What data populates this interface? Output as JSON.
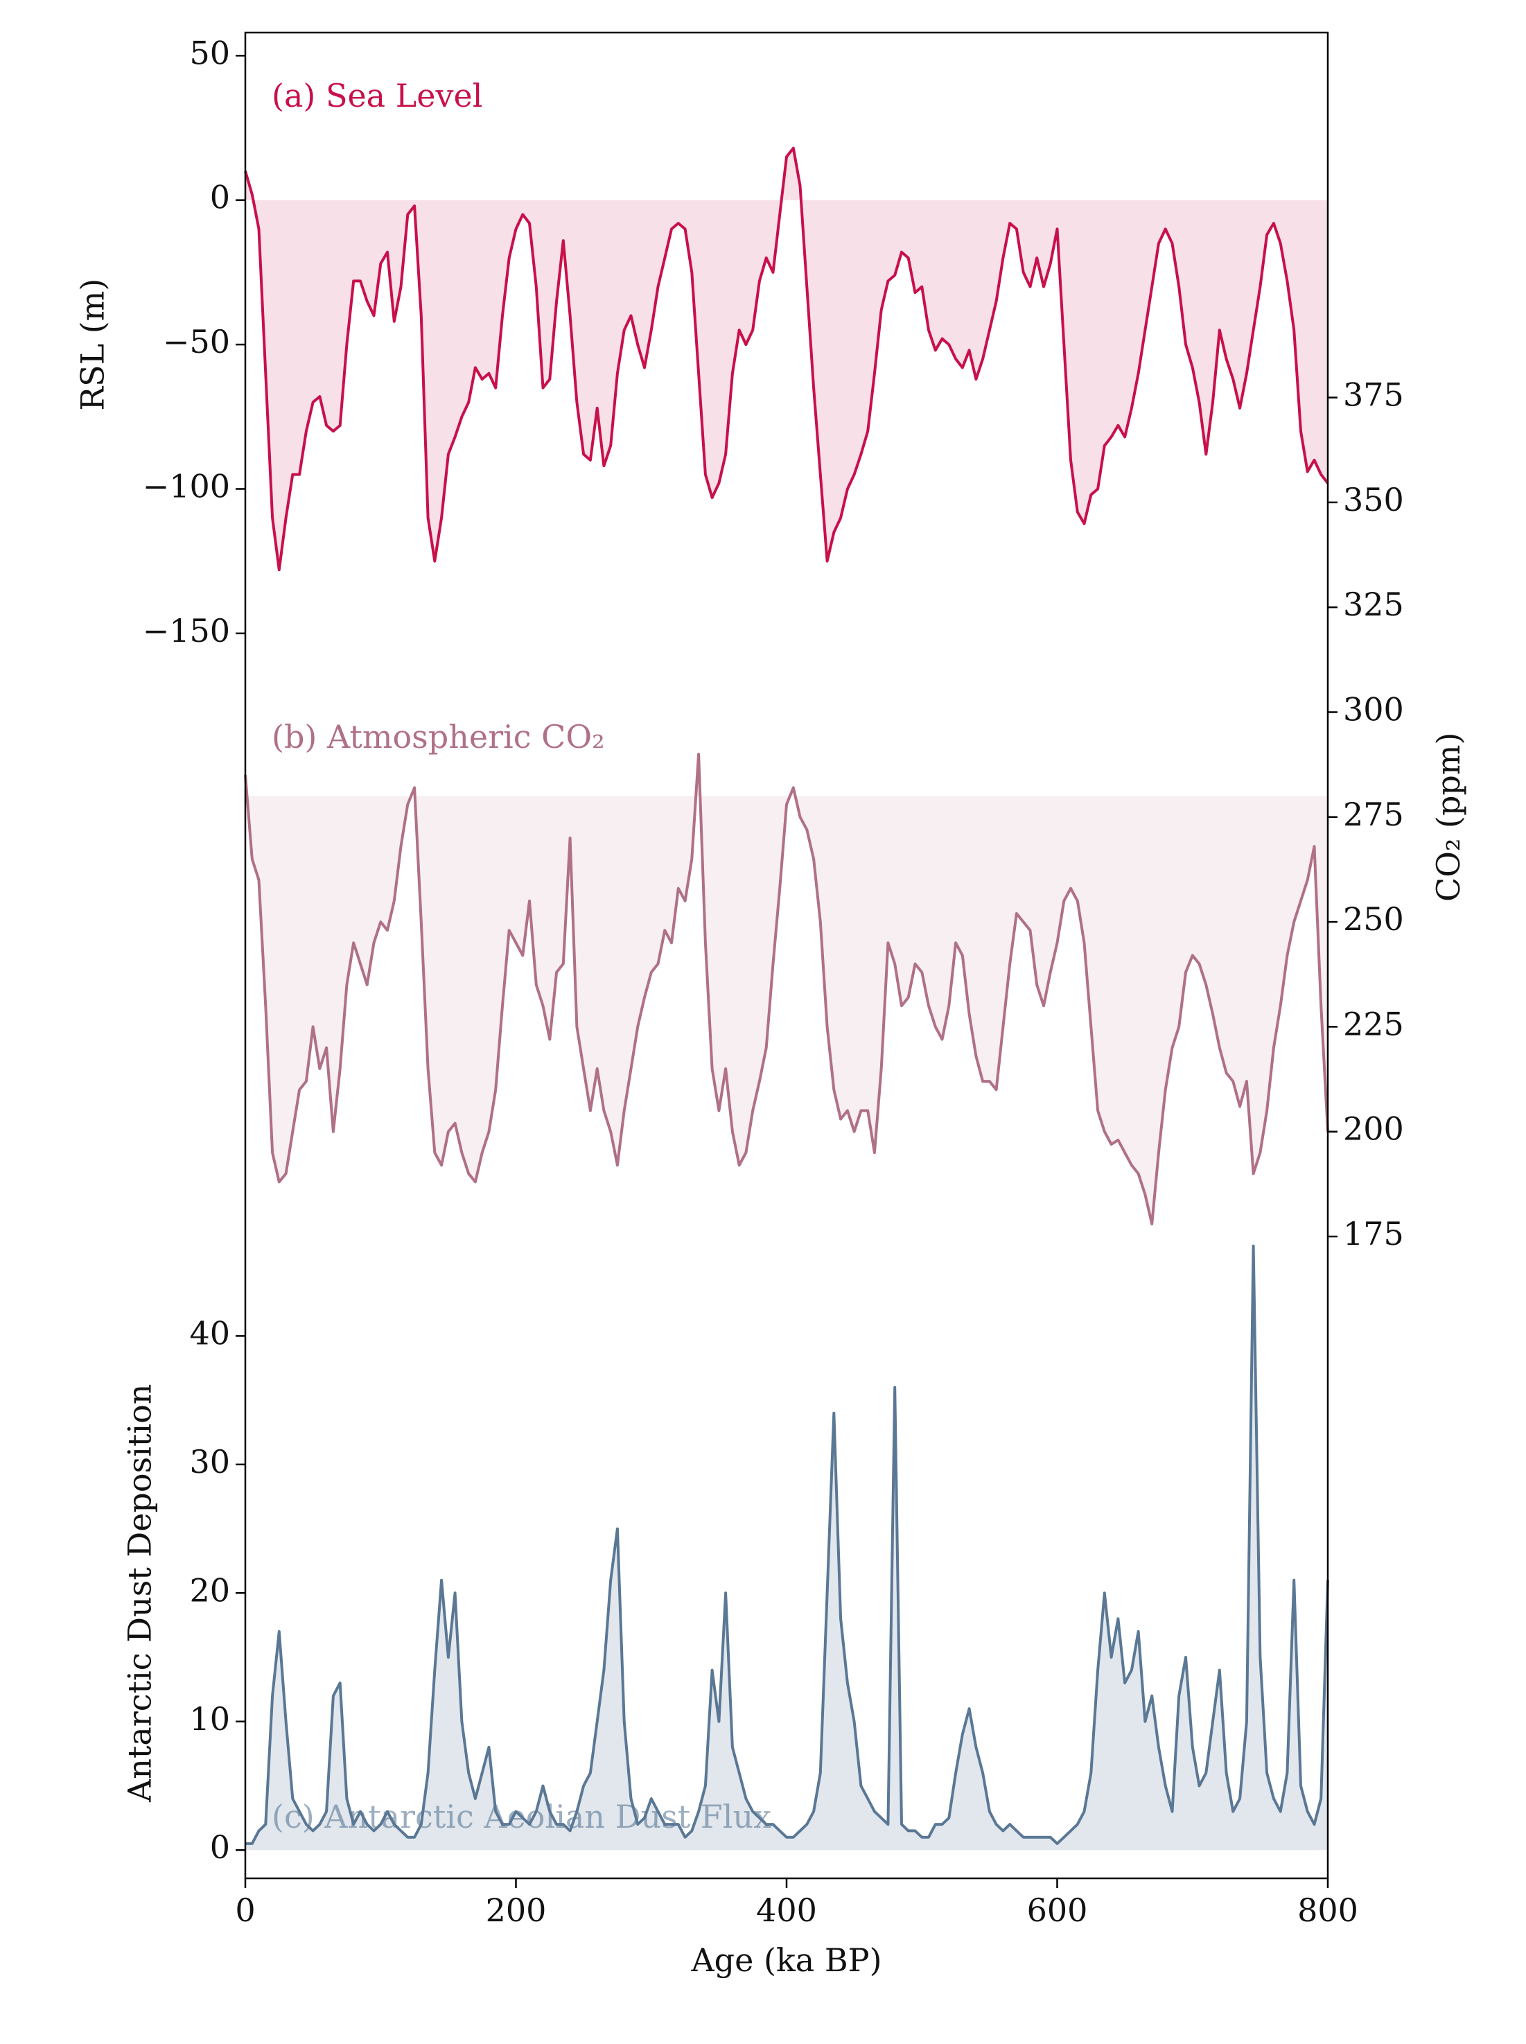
{
  "chart_data": [
    {
      "type": "line",
      "annotation": "(a) Sea Level",
      "y_label": "RSL (m)",
      "y_axis_side": "left",
      "color": "#c8104a",
      "fill_color": "#f7dbe5",
      "fill_to": 0,
      "xlim": [
        0,
        800
      ],
      "ylim": [
        -581,
        58
      ],
      "yticks": [
        50,
        0,
        -50,
        -100,
        -150
      ],
      "x": [
        0,
        5,
        10,
        15,
        20,
        25,
        30,
        35,
        40,
        45,
        50,
        55,
        60,
        65,
        70,
        75,
        80,
        85,
        90,
        95,
        100,
        105,
        110,
        115,
        120,
        125,
        130,
        135,
        140,
        145,
        150,
        155,
        160,
        165,
        170,
        175,
        180,
        185,
        190,
        195,
        200,
        205,
        210,
        215,
        220,
        225,
        230,
        235,
        240,
        245,
        250,
        255,
        260,
        265,
        270,
        275,
        280,
        285,
        290,
        295,
        300,
        305,
        310,
        315,
        320,
        325,
        330,
        335,
        340,
        345,
        350,
        355,
        360,
        365,
        370,
        375,
        380,
        385,
        390,
        395,
        400,
        405,
        410,
        415,
        420,
        425,
        430,
        435,
        440,
        445,
        450,
        455,
        460,
        465,
        470,
        475,
        480,
        485,
        490,
        495,
        500,
        505,
        510,
        515,
        520,
        525,
        530,
        535,
        540,
        545,
        550,
        555,
        560,
        565,
        570,
        575,
        580,
        585,
        590,
        595,
        600,
        605,
        610,
        615,
        620,
        625,
        630,
        635,
        640,
        645,
        650,
        655,
        660,
        665,
        670,
        675,
        680,
        685,
        690,
        695,
        700,
        705,
        710,
        715,
        720,
        725,
        730,
        735,
        740,
        745,
        750,
        755,
        760,
        765,
        770,
        775,
        780,
        785,
        790,
        795,
        800
      ],
      "values": [
        10,
        2,
        -10,
        -60,
        -110,
        -128,
        -110,
        -95,
        -95,
        -80,
        -70,
        -68,
        -78,
        -80,
        -78,
        -50,
        -28,
        -28,
        -35,
        -40,
        -22,
        -18,
        -42,
        -30,
        -5,
        -2,
        -40,
        -110,
        -125,
        -110,
        -88,
        -82,
        -75,
        -70,
        -58,
        -62,
        -60,
        -65,
        -40,
        -20,
        -10,
        -5,
        -8,
        -30,
        -65,
        -62,
        -35,
        -14,
        -40,
        -70,
        -88,
        -90,
        -72,
        -92,
        -85,
        -60,
        -45,
        -40,
        -50,
        -58,
        -45,
        -30,
        -20,
        -10,
        -8,
        -10,
        -25,
        -60,
        -95,
        -103,
        -98,
        -88,
        -60,
        -45,
        -50,
        -45,
        -28,
        -20,
        -25,
        -5,
        15,
        18,
        5,
        -30,
        -65,
        -95,
        -125,
        -115,
        -110,
        -100,
        -95,
        -88,
        -80,
        -60,
        -38,
        -28,
        -26,
        -18,
        -20,
        -32,
        -30,
        -45,
        -52,
        -48,
        -50,
        -55,
        -58,
        -52,
        -62,
        -55,
        -45,
        -35,
        -20,
        -8,
        -10,
        -25,
        -30,
        -20,
        -30,
        -22,
        -10,
        -50,
        -90,
        -108,
        -112,
        -102,
        -100,
        -85,
        -82,
        -78,
        -82,
        -72,
        -60,
        -45,
        -30,
        -15,
        -10,
        -15,
        -30,
        -50,
        -58,
        -70,
        -88,
        -70,
        -45,
        -55,
        -62,
        -72,
        -60,
        -45,
        -30,
        -12,
        -8,
        -15,
        -28,
        -45,
        -80,
        -94,
        -90,
        -95,
        -98
      ]
    },
    {
      "type": "line",
      "annotation": "(b) Atmospheric CO₂",
      "y_label": "CO₂ (ppm)",
      "y_axis_side": "right",
      "color": "#b07085",
      "fill_color": "#f6ecef",
      "fill_to": 280,
      "xlim": [
        0,
        800
      ],
      "ylim": [
        22,
        462
      ],
      "yticks": [
        375,
        350,
        325,
        300,
        275,
        250,
        225,
        200,
        175
      ],
      "x": [
        0,
        5,
        10,
        15,
        20,
        25,
        30,
        35,
        40,
        45,
        50,
        55,
        60,
        65,
        70,
        75,
        80,
        85,
        90,
        95,
        100,
        105,
        110,
        115,
        120,
        125,
        130,
        135,
        140,
        145,
        150,
        155,
        160,
        165,
        170,
        175,
        180,
        185,
        190,
        195,
        200,
        205,
        210,
        215,
        220,
        225,
        230,
        235,
        240,
        245,
        250,
        255,
        260,
        265,
        270,
        275,
        280,
        285,
        290,
        295,
        300,
        305,
        310,
        315,
        320,
        325,
        330,
        335,
        340,
        345,
        350,
        355,
        360,
        365,
        370,
        375,
        380,
        385,
        390,
        395,
        400,
        405,
        410,
        415,
        420,
        425,
        430,
        435,
        440,
        445,
        450,
        455,
        460,
        465,
        470,
        475,
        480,
        485,
        490,
        495,
        500,
        505,
        510,
        515,
        520,
        525,
        530,
        535,
        540,
        545,
        550,
        555,
        560,
        565,
        570,
        575,
        580,
        585,
        590,
        595,
        600,
        605,
        610,
        615,
        620,
        625,
        630,
        635,
        640,
        645,
        650,
        655,
        660,
        665,
        670,
        675,
        680,
        685,
        690,
        695,
        700,
        705,
        710,
        715,
        720,
        725,
        730,
        735,
        740,
        745,
        750,
        755,
        760,
        765,
        770,
        775,
        780,
        785,
        790,
        795,
        800
      ],
      "values": [
        285,
        265,
        260,
        230,
        195,
        188,
        190,
        200,
        210,
        212,
        225,
        215,
        220,
        200,
        215,
        235,
        245,
        240,
        235,
        245,
        250,
        248,
        255,
        268,
        278,
        282,
        250,
        215,
        195,
        192,
        200,
        202,
        195,
        190,
        188,
        195,
        200,
        210,
        230,
        248,
        245,
        242,
        255,
        235,
        230,
        222,
        238,
        240,
        270,
        225,
        215,
        205,
        215,
        205,
        200,
        192,
        205,
        215,
        225,
        232,
        238,
        240,
        248,
        245,
        258,
        255,
        265,
        290,
        245,
        215,
        205,
        215,
        200,
        192,
        195,
        205,
        212,
        220,
        240,
        258,
        278,
        282,
        275,
        272,
        265,
        250,
        225,
        210,
        203,
        205,
        200,
        205,
        205,
        195,
        215,
        245,
        240,
        230,
        232,
        240,
        238,
        230,
        225,
        222,
        230,
        245,
        242,
        228,
        218,
        212,
        212,
        210,
        225,
        240,
        252,
        250,
        248,
        235,
        230,
        238,
        245,
        255,
        258,
        255,
        245,
        225,
        205,
        200,
        197,
        198,
        195,
        192,
        190,
        185,
        178,
        195,
        210,
        220,
        225,
        238,
        242,
        240,
        235,
        228,
        220,
        214,
        212,
        206,
        212,
        190,
        195,
        205,
        220,
        230,
        242,
        250,
        255,
        260,
        268,
        230,
        200
      ]
    },
    {
      "type": "line",
      "annotation": "(c) Antarctic Aeolian Dust Flux",
      "y_label": "Antarctic Dust Deposition",
      "y_axis_side": "left",
      "x_label": "Age (ka BP)",
      "xticks": [
        0,
        200,
        400,
        600,
        800
      ],
      "color": "#5a7895",
      "fill_color": "#dce3ea",
      "fill_to": 0,
      "xlim": [
        0,
        800
      ],
      "ylim": [
        -2.2,
        141.4
      ],
      "yticks": [
        40,
        30,
        20,
        10,
        0
      ],
      "x": [
        0,
        5,
        10,
        15,
        20,
        25,
        30,
        35,
        40,
        45,
        50,
        55,
        60,
        65,
        70,
        75,
        80,
        85,
        90,
        95,
        100,
        105,
        110,
        115,
        120,
        125,
        130,
        135,
        140,
        145,
        150,
        155,
        160,
        165,
        170,
        175,
        180,
        185,
        190,
        195,
        200,
        205,
        210,
        215,
        220,
        225,
        230,
        235,
        240,
        245,
        250,
        255,
        260,
        265,
        270,
        275,
        280,
        285,
        290,
        295,
        300,
        305,
        310,
        315,
        320,
        325,
        330,
        335,
        340,
        345,
        350,
        355,
        360,
        365,
        370,
        375,
        380,
        385,
        390,
        395,
        400,
        405,
        410,
        415,
        420,
        425,
        430,
        435,
        440,
        445,
        450,
        455,
        460,
        465,
        470,
        475,
        480,
        485,
        490,
        495,
        500,
        505,
        510,
        515,
        520,
        525,
        530,
        535,
        540,
        545,
        550,
        555,
        560,
        565,
        570,
        575,
        580,
        585,
        590,
        595,
        600,
        605,
        610,
        615,
        620,
        625,
        630,
        635,
        640,
        645,
        650,
        655,
        660,
        665,
        670,
        675,
        680,
        685,
        690,
        695,
        700,
        705,
        710,
        715,
        720,
        725,
        730,
        735,
        740,
        745,
        750,
        755,
        760,
        765,
        770,
        775,
        780,
        785,
        790,
        795,
        800
      ],
      "values": [
        0.5,
        0.5,
        1.5,
        2,
        12,
        17,
        10,
        4,
        3,
        2,
        1.5,
        2,
        3,
        12,
        13,
        4,
        2,
        3,
        2,
        1.5,
        2,
        3,
        2,
        1.5,
        1,
        1,
        2,
        6,
        14,
        21,
        15,
        20,
        10,
        6,
        4,
        6,
        8,
        3,
        2,
        2,
        3,
        2.5,
        2,
        3,
        5,
        3,
        2,
        2,
        1.5,
        3,
        5,
        6,
        10,
        14,
        21,
        25,
        10,
        4,
        2,
        2.5,
        4,
        3,
        2,
        2,
        2,
        1,
        1.5,
        3,
        5,
        14,
        10,
        20,
        8,
        6,
        4,
        3,
        2.5,
        2,
        2,
        1.5,
        1,
        1,
        1.5,
        2,
        3,
        6,
        20,
        34,
        18,
        13,
        10,
        5,
        4,
        3,
        2.5,
        2,
        36,
        2,
        1.5,
        1.5,
        1,
        1,
        2,
        2,
        2.5,
        6,
        9,
        11,
        8,
        6,
        3,
        2,
        1.5,
        2,
        1.5,
        1,
        1,
        1,
        1,
        1,
        0.5,
        1,
        1.5,
        2,
        3,
        6,
        14,
        20,
        15,
        18,
        13,
        14,
        17,
        10,
        12,
        8,
        5,
        3,
        12,
        15,
        8,
        5,
        6,
        10,
        14,
        6,
        3,
        4,
        10,
        47,
        15,
        6,
        4,
        3,
        6,
        21,
        5,
        3,
        2,
        4,
        21
      ]
    }
  ]
}
